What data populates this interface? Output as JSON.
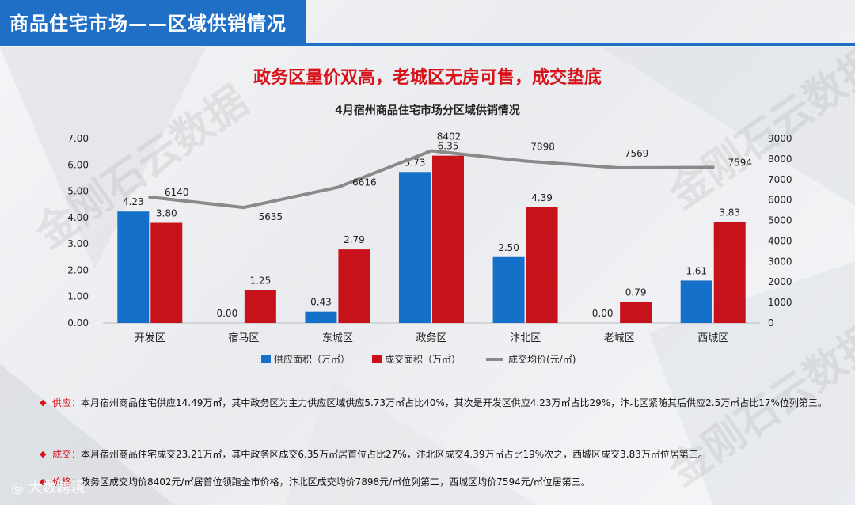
{
  "header": {
    "title": "商品住宅市场——区域供销情况"
  },
  "headline": "政务区量价双高，老城区无房可售，成交垫底",
  "chart_data": {
    "type": "bar",
    "title": "4月宿州商品住宅市场分区域供销情况",
    "categories": [
      "开发区",
      "宿马区",
      "东城区",
      "政务区",
      "汴北区",
      "老城区",
      "西城区"
    ],
    "series": [
      {
        "name": "供应面积（万㎡）",
        "type": "bar",
        "axis": "left",
        "color": "#1570c9",
        "values": [
          4.23,
          0.0,
          0.43,
          5.73,
          2.5,
          0.0,
          1.61
        ],
        "labels": [
          "4.23",
          "0.00",
          "0.43",
          "5.73",
          "2.50",
          "0.00",
          "1.61"
        ]
      },
      {
        "name": "成交面积（万㎡）",
        "type": "bar",
        "axis": "left",
        "color": "#c8121b",
        "values": [
          3.8,
          1.25,
          2.79,
          6.35,
          4.39,
          0.79,
          3.83
        ],
        "labels": [
          "3.80",
          "1.25",
          "2.79",
          "6.35",
          "4.39",
          "0.79",
          "3.83"
        ]
      },
      {
        "name": "成交均价(元/㎡)",
        "type": "line",
        "axis": "right",
        "color": "#8a8a8a",
        "values": [
          6140,
          5635,
          6616,
          8402,
          7898,
          7569,
          7594
        ],
        "labels": [
          "6140",
          "5635",
          "6616",
          "8402",
          "7898",
          "7569",
          "7594"
        ]
      }
    ],
    "y_left": {
      "min": 0,
      "max": 7,
      "ticks": [
        "0.00",
        "1.00",
        "2.00",
        "3.00",
        "4.00",
        "5.00",
        "6.00",
        "7.00"
      ]
    },
    "y_right": {
      "min": 0,
      "max": 9000,
      "ticks": [
        "0",
        "1000",
        "2000",
        "3000",
        "4000",
        "5000",
        "6000",
        "7000",
        "8000",
        "9000"
      ]
    },
    "legend_position": "bottom",
    "grid": false
  },
  "notes": [
    {
      "key": "供应：",
      "text": "本月宿州商品住宅供应14.49万㎡，其中政务区为主力供应区域供应5.73万㎡占比40%，其次是开发区供应4.23万㎡占比29%，汴北区紧随其后供应2.5万㎡占比17%位列第三。"
    },
    {
      "key": "成交：",
      "text": "本月宿州商品住宅成交23.21万㎡，其中政务区成交6.35万㎡居首位占比27%，汴北区成交4.39万㎡占比19%次之，西城区成交3.83万㎡位居第三。"
    },
    {
      "key": "价格：",
      "text": "政务区成交均价8402元/㎡居首位领跑全市价格，汴北区成交均价7898元/㎡位列第二，西城区均价7594元/㎡位居第三。"
    }
  ],
  "watermarks": [
    "金刚石云数据",
    "金刚石云数据",
    "金刚石云数据"
  ],
  "footer": {
    "brand": "大数跨境"
  },
  "icons": {
    "bullet": "diamond-icon",
    "footer": "brand-logo-icon"
  }
}
